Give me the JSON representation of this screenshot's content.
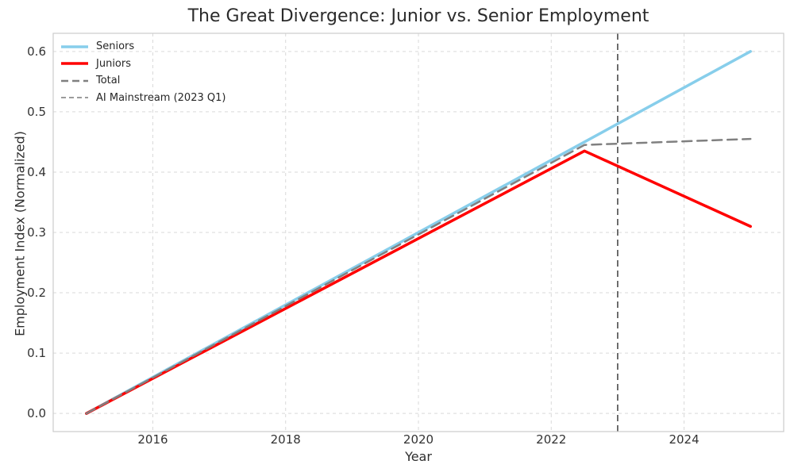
{
  "chart_data": {
    "type": "line",
    "title": "The Great Divergence: Junior vs. Senior Employment",
    "xlabel": "Year",
    "ylabel": "Employment Index (Normalized)",
    "xlim": [
      2014.5,
      2025.5
    ],
    "ylim": [
      -0.03,
      0.63
    ],
    "grid": true,
    "x_ticks": [
      {
        "value": 2016,
        "label": "2016"
      },
      {
        "value": 2018,
        "label": "2018"
      },
      {
        "value": 2020,
        "label": "2020"
      },
      {
        "value": 2022,
        "label": "2022"
      },
      {
        "value": 2024,
        "label": "2024"
      }
    ],
    "y_ticks": [
      {
        "value": 0.0,
        "label": "0.0"
      },
      {
        "value": 0.1,
        "label": "0.1"
      },
      {
        "value": 0.2,
        "label": "0.2"
      },
      {
        "value": 0.3,
        "label": "0.3"
      },
      {
        "value": 0.4,
        "label": "0.4"
      },
      {
        "value": 0.5,
        "label": "0.5"
      },
      {
        "value": 0.6,
        "label": "0.6"
      }
    ],
    "series": [
      {
        "name": "Seniors",
        "color": "#87CEEB",
        "style": "solid",
        "width": 3.5,
        "points": [
          [
            2015,
            0.0
          ],
          [
            2025,
            0.6
          ]
        ]
      },
      {
        "name": "Juniors",
        "color": "#FF0000",
        "style": "solid",
        "width": 3.5,
        "points": [
          [
            2015,
            0.0
          ],
          [
            2022.5,
            0.435
          ],
          [
            2025,
            0.31
          ]
        ]
      },
      {
        "name": "Total",
        "color": "#808080",
        "style": "dashed-long",
        "width": 2.5,
        "points": [
          [
            2015,
            0.0
          ],
          [
            2022.5,
            0.445
          ],
          [
            2025,
            0.455
          ]
        ]
      }
    ],
    "annotations": [
      {
        "label": "AI Mainstream (2023 Q1)",
        "type": "vline",
        "x": 2023,
        "color": "#5f5f5f",
        "style": "dashed-short",
        "width": 1.8
      }
    ],
    "legend_position": "upper-left",
    "legend_entries": [
      {
        "label": "Seniors",
        "color": "#87CEEB",
        "style": "solid",
        "width": 3.5
      },
      {
        "label": "Juniors",
        "color": "#FF0000",
        "style": "solid",
        "width": 3.5
      },
      {
        "label": "Total",
        "color": "#808080",
        "style": "dashed-long",
        "width": 2.5
      },
      {
        "label": "AI Mainstream (2023 Q1)",
        "color": "#7a7a7a",
        "style": "dashed-short",
        "width": 1.6
      }
    ],
    "style": {
      "grid_color": "#d9d9d9",
      "border_color": "#cccccc",
      "background": "#ffffff",
      "text_color": "#333333"
    }
  }
}
